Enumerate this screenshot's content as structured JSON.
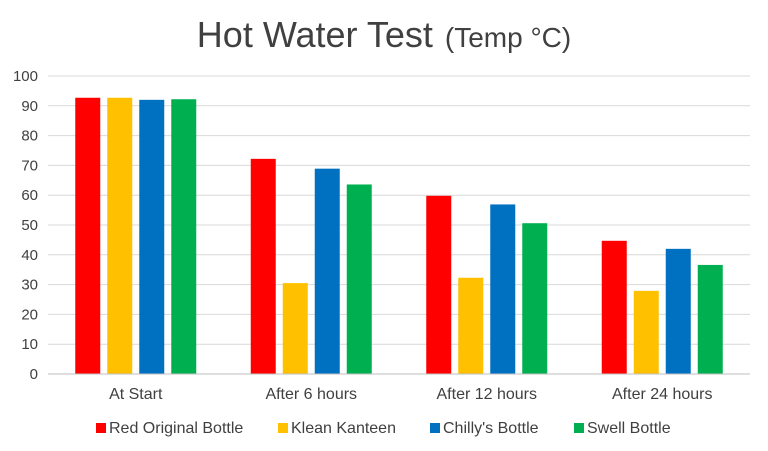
{
  "chart_data": {
    "type": "bar",
    "title": "Hot Water Test",
    "subtitle": "(Temp °C)",
    "xlabel": "",
    "ylabel": "",
    "categories": [
      "At Start",
      "After 6 hours",
      "After 12 hours",
      "After 24 hours"
    ],
    "ylim": [
      0,
      100
    ],
    "yticks": [
      0,
      10,
      20,
      30,
      40,
      50,
      60,
      70,
      80,
      90,
      100
    ],
    "grid": true,
    "legend_position": "bottom",
    "series": [
      {
        "name": "Red Original Bottle",
        "color": "#ff0000",
        "values": [
          92.7,
          72.2,
          59.8,
          44.7
        ]
      },
      {
        "name": "Klean Kanteen",
        "color": "#ffc000",
        "values": [
          92.7,
          30.5,
          32.3,
          27.9
        ]
      },
      {
        "name": "Chilly's Bottle",
        "color": "#0070c0",
        "values": [
          92.0,
          68.9,
          56.9,
          42.0
        ]
      },
      {
        "name": "Swell Bottle",
        "color": "#00b050",
        "values": [
          92.2,
          63.6,
          50.6,
          36.6
        ]
      }
    ]
  }
}
